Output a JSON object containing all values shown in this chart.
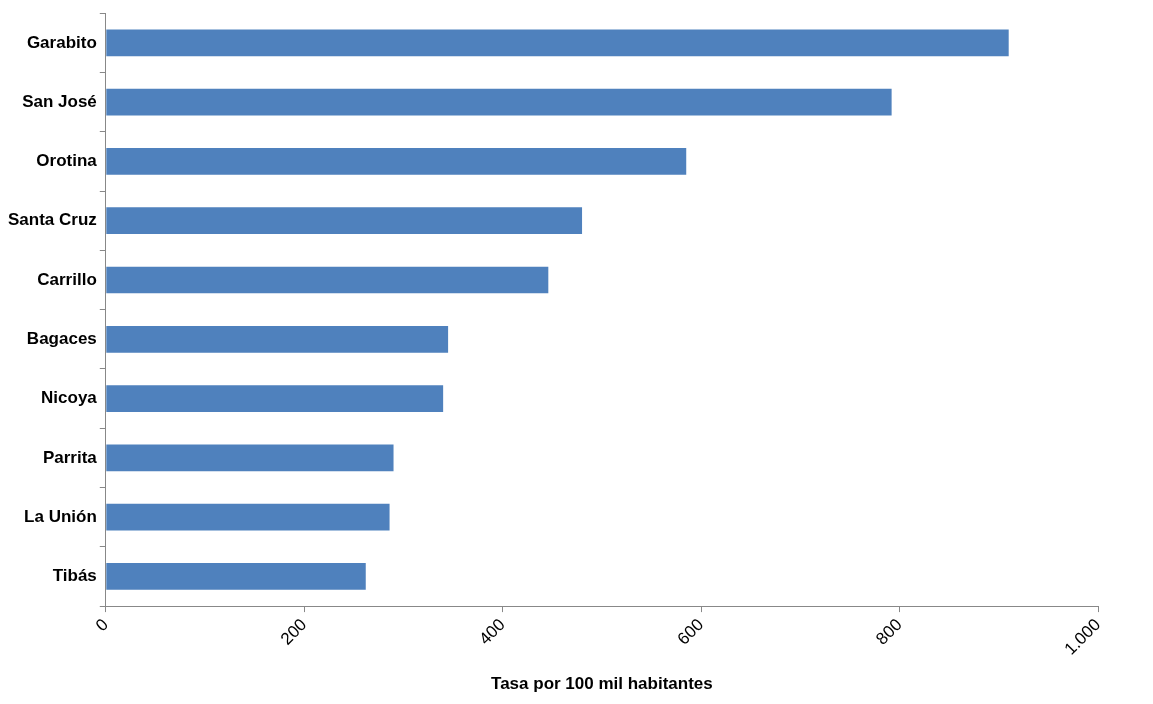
{
  "chart_data": {
    "type": "bar",
    "orientation": "horizontal",
    "xlabel": "Tasa por 100 mil habitantes",
    "categories": [
      "Garabito",
      "San José",
      "Orotina",
      "Santa Cruz",
      "Carrillo",
      "Bagaces",
      "Nicoya",
      "Parrita",
      "La Unión",
      "Tibás"
    ],
    "values": [
      910,
      792,
      585,
      480,
      446,
      345,
      340,
      290,
      286,
      262
    ],
    "color": "#4f81bd",
    "xlim": [
      0,
      1000
    ],
    "xticks": [
      0,
      200,
      400,
      600,
      800,
      {
        "value": 1000,
        "label": "1.000"
      }
    ],
    "grid": false,
    "legend": false
  }
}
